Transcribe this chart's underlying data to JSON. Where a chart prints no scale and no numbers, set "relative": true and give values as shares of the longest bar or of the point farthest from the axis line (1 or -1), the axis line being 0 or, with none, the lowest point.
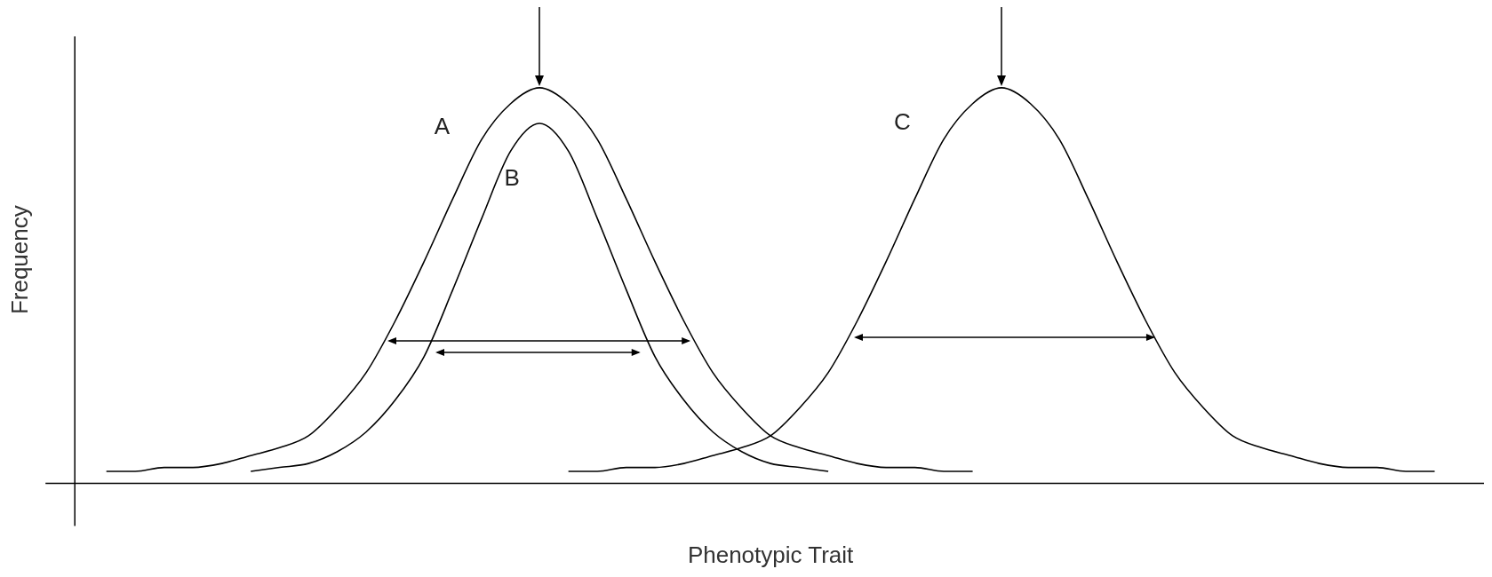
{
  "chart_data": {
    "type": "line",
    "relative": true,
    "xlabel": "Phenotypic Trait",
    "ylabel": "Frequency",
    "legend": false,
    "grid": false,
    "marker": "none",
    "line_style": "solid",
    "categories": [
      null,
      null,
      null,
      null,
      null,
      null,
      null,
      null,
      null,
      null,
      null,
      null,
      null,
      null,
      null,
      null,
      null,
      null,
      null,
      null,
      null,
      null,
      null,
      null,
      null,
      null,
      null,
      null,
      null,
      null,
      null,
      null,
      null,
      null,
      null,
      null,
      null,
      null,
      null,
      null,
      null,
      null,
      null,
      null,
      null,
      null,
      null,
      null,
      null
    ],
    "series": [
      {
        "name": "A",
        "color": "#000000",
        "values": [
          null,
          0.03,
          0.03,
          0.04,
          0.04,
          0.05,
          0.07,
          0.09,
          0.12,
          0.19,
          0.28,
          0.41,
          0.56,
          0.72,
          0.87,
          0.96,
          1.0,
          0.96,
          0.87,
          0.72,
          0.56,
          0.41,
          0.28,
          0.19,
          0.12,
          0.09,
          0.07,
          0.05,
          0.04,
          0.04,
          0.03,
          0.03,
          null,
          null,
          null,
          null,
          null,
          null,
          null,
          null,
          null,
          null,
          null,
          null,
          null,
          null,
          null,
          null,
          null
        ]
      },
      {
        "name": "B",
        "color": "#000000",
        "values": [
          null,
          null,
          null,
          null,
          null,
          null,
          0.03,
          0.04,
          0.05,
          0.08,
          0.13,
          0.21,
          0.32,
          0.49,
          0.67,
          0.84,
          0.91,
          0.84,
          0.67,
          0.49,
          0.32,
          0.21,
          0.13,
          0.08,
          0.05,
          0.04,
          0.03,
          null,
          null,
          null,
          null,
          null,
          null,
          null,
          null,
          null,
          null,
          null,
          null,
          null,
          null,
          null,
          null,
          null,
          null,
          null,
          null,
          null,
          null
        ]
      },
      {
        "name": "C",
        "color": "#000000",
        "values": [
          null,
          null,
          null,
          null,
          null,
          null,
          null,
          null,
          null,
          null,
          null,
          null,
          null,
          null,
          null,
          null,
          null,
          0.03,
          0.03,
          0.04,
          0.04,
          0.05,
          0.07,
          0.09,
          0.12,
          0.19,
          0.28,
          0.41,
          0.56,
          0.72,
          0.87,
          0.96,
          1.0,
          0.96,
          0.87,
          0.72,
          0.56,
          0.41,
          0.28,
          0.19,
          0.12,
          0.09,
          0.07,
          0.05,
          0.04,
          0.04,
          0.03,
          0.03,
          null
        ]
      }
    ]
  }
}
